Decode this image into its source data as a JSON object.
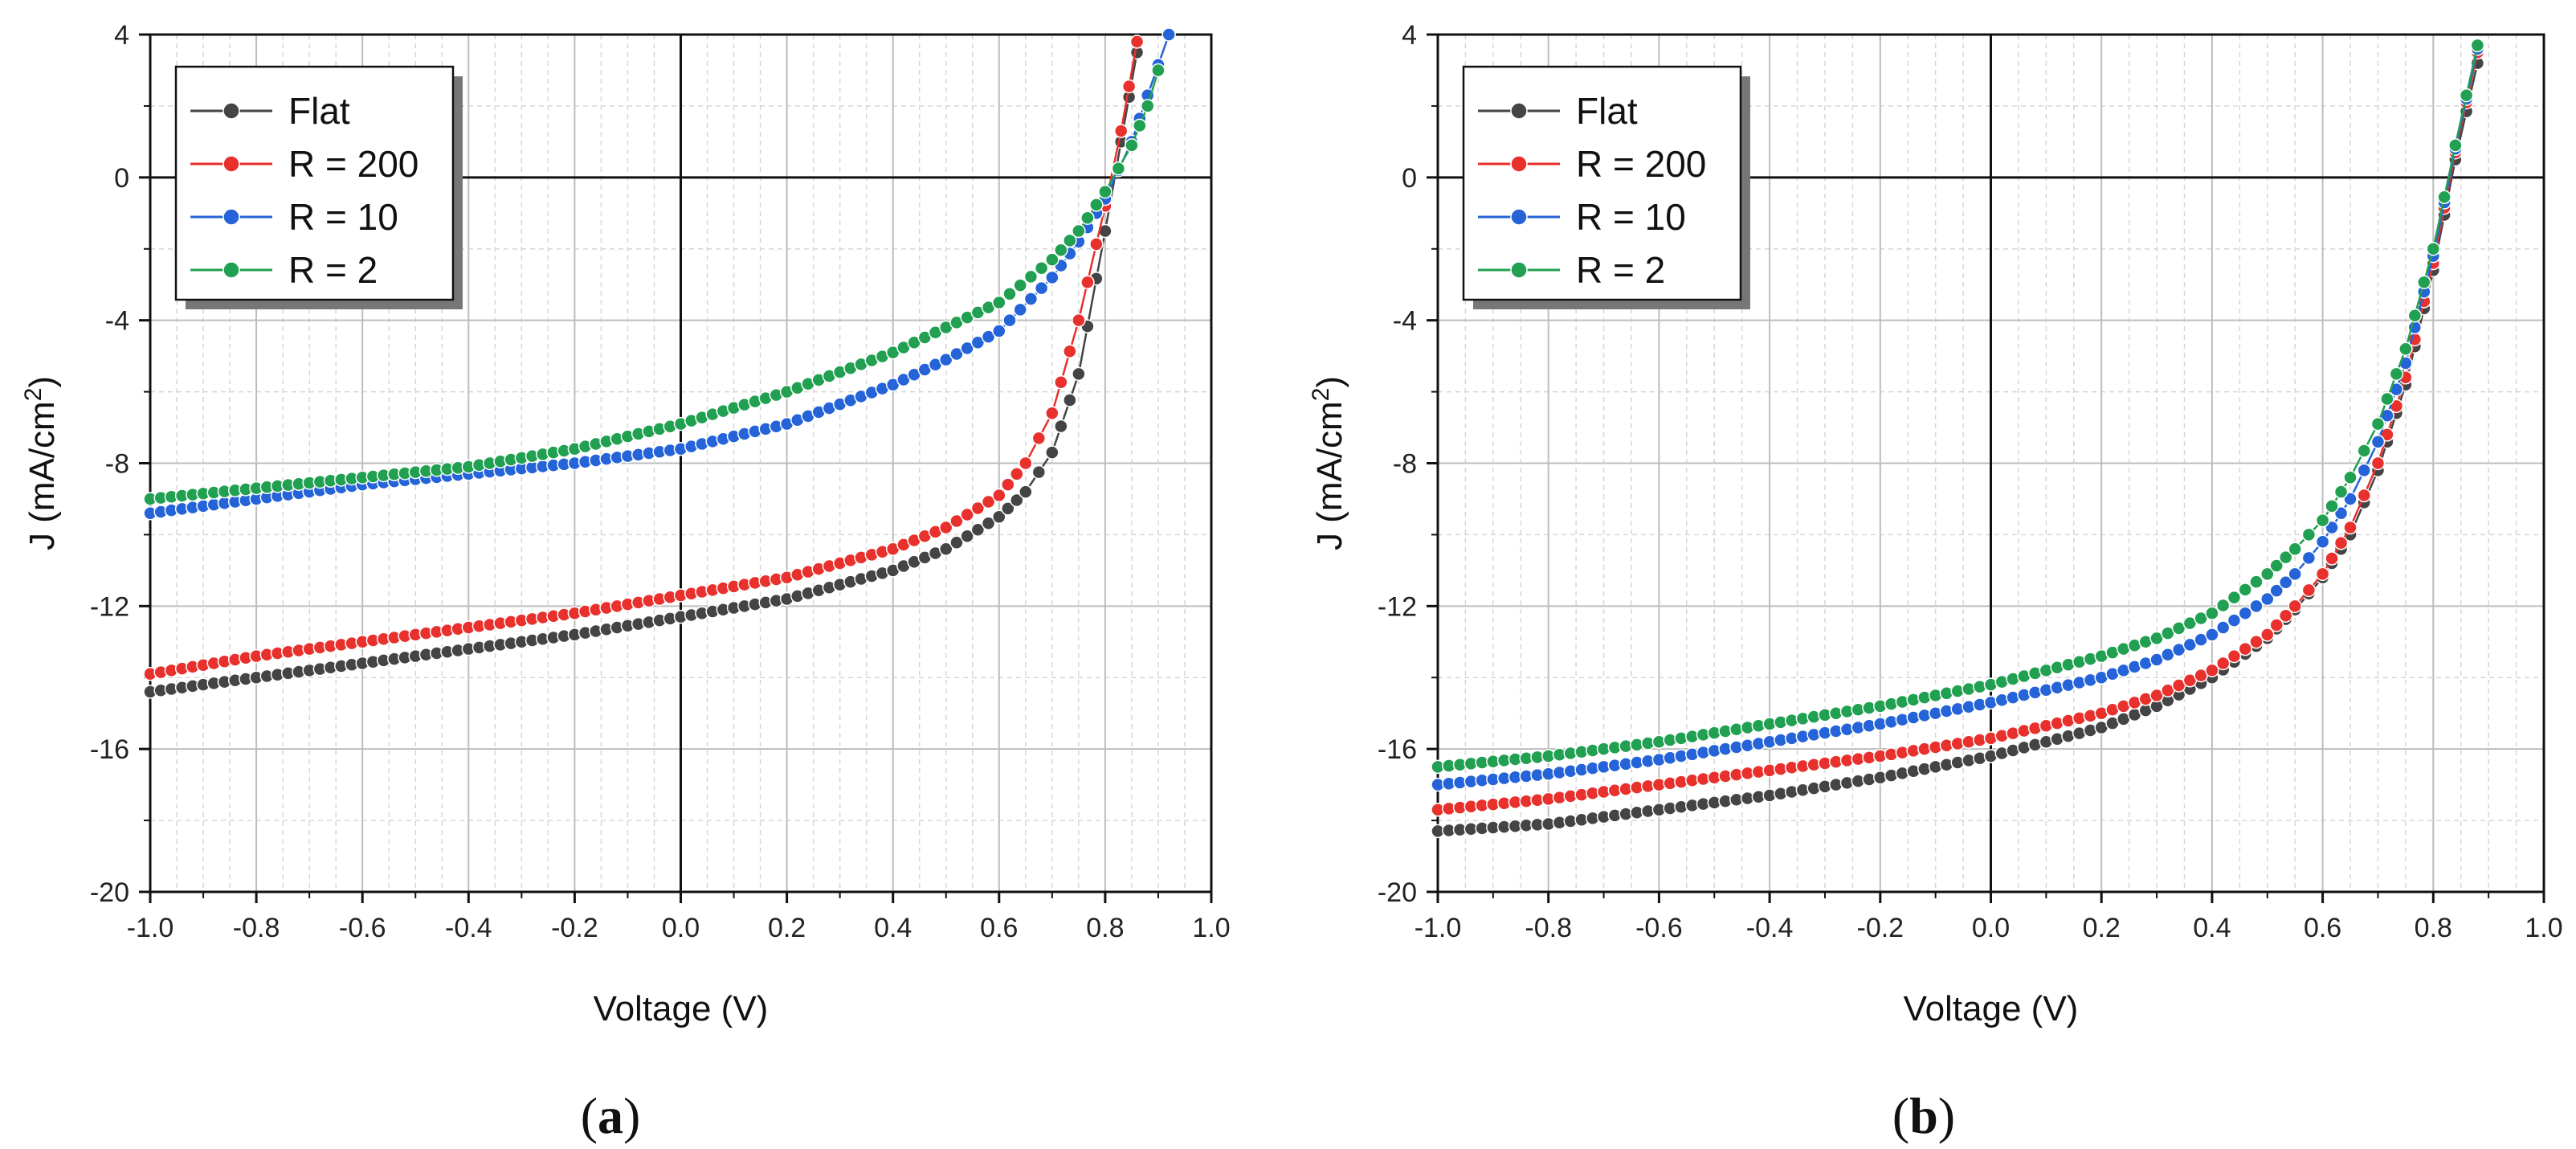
{
  "chart_data": [
    {
      "type": "line",
      "panel_label": "a",
      "xlabel": "Voltage (V)",
      "ylabel": "J (mA/cm",
      "ylabel_sup": "2",
      "ylabel_suffix": ")",
      "xlim": [
        -1.0,
        1.0
      ],
      "ylim": [
        -20,
        4
      ],
      "xticks": [
        "-1.0",
        "-0.8",
        "-0.6",
        "-0.4",
        "-0.2",
        "0.0",
        "0.2",
        "0.4",
        "0.6",
        "0.8",
        "1.0"
      ],
      "yticks": [
        "4",
        "0",
        "-4",
        "-8",
        "-12",
        "-16",
        "-20"
      ],
      "grid": true,
      "legend_position": "top-left",
      "series": [
        {
          "name": "Flat",
          "color": "#444444",
          "x": [
            -1.0,
            -0.8,
            -0.6,
            -0.4,
            -0.2,
            0.0,
            0.2,
            0.4,
            0.5,
            0.6,
            0.65,
            0.7,
            0.75,
            0.8,
            0.83,
            0.86
          ],
          "y": [
            -14.4,
            -14.0,
            -13.6,
            -13.2,
            -12.8,
            -12.3,
            -11.8,
            -11.0,
            -10.4,
            -9.5,
            -8.8,
            -7.7,
            -5.5,
            -1.5,
            1.0,
            3.5
          ]
        },
        {
          "name": "R = 200",
          "color": "#e8302c",
          "x": [
            -1.0,
            -0.8,
            -0.6,
            -0.4,
            -0.2,
            0.0,
            0.2,
            0.4,
            0.5,
            0.6,
            0.65,
            0.7,
            0.75,
            0.8,
            0.83,
            0.86
          ],
          "y": [
            -13.9,
            -13.4,
            -13.0,
            -12.6,
            -12.2,
            -11.7,
            -11.2,
            -10.4,
            -9.8,
            -8.9,
            -8.0,
            -6.6,
            -4.0,
            -0.8,
            1.3,
            3.8
          ]
        },
        {
          "name": "R = 10",
          "color": "#2563d8",
          "x": [
            -1.0,
            -0.8,
            -0.6,
            -0.4,
            -0.2,
            0.0,
            0.2,
            0.4,
            0.5,
            0.6,
            0.7,
            0.75,
            0.8,
            0.85,
            0.88,
            0.92
          ],
          "y": [
            -9.4,
            -9.0,
            -8.6,
            -8.3,
            -8.0,
            -7.6,
            -6.9,
            -5.8,
            -5.1,
            -4.3,
            -2.8,
            -1.8,
            -0.6,
            1.0,
            2.3,
            4.0
          ]
        },
        {
          "name": "R = 2",
          "color": "#20a050",
          "x": [
            -1.0,
            -0.8,
            -0.6,
            -0.4,
            -0.2,
            0.0,
            0.2,
            0.4,
            0.5,
            0.6,
            0.7,
            0.75,
            0.8,
            0.85,
            0.88,
            0.9
          ],
          "y": [
            -9.0,
            -8.7,
            -8.4,
            -8.1,
            -7.6,
            -6.9,
            -6.0,
            -4.9,
            -4.2,
            -3.5,
            -2.3,
            -1.5,
            -0.4,
            0.9,
            2.0,
            3.0
          ]
        }
      ]
    },
    {
      "type": "line",
      "panel_label": "b",
      "xlabel": "Voltage (V)",
      "ylabel": "J (mA/cm",
      "ylabel_sup": "2",
      "ylabel_suffix": ")",
      "xlim": [
        -1.0,
        1.0
      ],
      "ylim": [
        -20,
        4
      ],
      "xticks": [
        "-1.0",
        "-0.8",
        "-0.6",
        "-0.4",
        "-0.2",
        "0.0",
        "0.2",
        "0.4",
        "0.6",
        "0.8",
        "1.0"
      ],
      "yticks": [
        "4",
        "0",
        "-4",
        "-8",
        "-12",
        "-16",
        "-20"
      ],
      "grid": true,
      "legend_position": "top-left",
      "series": [
        {
          "name": "Flat",
          "color": "#444444",
          "x": [
            -1.0,
            -0.8,
            -0.6,
            -0.4,
            -0.2,
            0.0,
            0.2,
            0.3,
            0.4,
            0.5,
            0.55,
            0.6,
            0.65,
            0.7,
            0.75,
            0.8,
            0.84,
            0.88
          ],
          "y": [
            -18.3,
            -18.1,
            -17.7,
            -17.3,
            -16.8,
            -16.2,
            -15.4,
            -14.8,
            -14.0,
            -12.9,
            -12.1,
            -11.2,
            -10.0,
            -8.2,
            -5.8,
            -2.6,
            0.5,
            3.2
          ]
        },
        {
          "name": "R = 200",
          "color": "#e8302c",
          "x": [
            -1.0,
            -0.8,
            -0.6,
            -0.4,
            -0.2,
            0.0,
            0.2,
            0.3,
            0.4,
            0.5,
            0.55,
            0.6,
            0.65,
            0.7,
            0.75,
            0.8,
            0.84,
            0.88
          ],
          "y": [
            -17.7,
            -17.4,
            -17.0,
            -16.6,
            -16.2,
            -15.7,
            -15.0,
            -14.5,
            -13.8,
            -12.8,
            -12.0,
            -11.1,
            -9.8,
            -8.0,
            -5.6,
            -2.4,
            0.7,
            3.5
          ]
        },
        {
          "name": "R = 10",
          "color": "#2563d8",
          "x": [
            -1.0,
            -0.8,
            -0.6,
            -0.4,
            -0.2,
            0.0,
            0.2,
            0.3,
            0.4,
            0.5,
            0.55,
            0.6,
            0.65,
            0.7,
            0.75,
            0.8,
            0.84,
            0.88
          ],
          "y": [
            -17.0,
            -16.7,
            -16.3,
            -15.8,
            -15.3,
            -14.7,
            -14.0,
            -13.5,
            -12.8,
            -11.8,
            -11.1,
            -10.2,
            -9.0,
            -7.4,
            -5.2,
            -2.2,
            0.8,
            3.6
          ]
        },
        {
          "name": "R = 2",
          "color": "#20a050",
          "x": [
            -1.0,
            -0.8,
            -0.6,
            -0.4,
            -0.2,
            0.0,
            0.2,
            0.3,
            0.4,
            0.5,
            0.55,
            0.6,
            0.65,
            0.7,
            0.75,
            0.8,
            0.84,
            0.88
          ],
          "y": [
            -16.5,
            -16.2,
            -15.8,
            -15.3,
            -14.8,
            -14.2,
            -13.4,
            -12.9,
            -12.2,
            -11.1,
            -10.4,
            -9.6,
            -8.4,
            -6.9,
            -4.8,
            -2.0,
            0.9,
            3.7
          ]
        }
      ]
    }
  ]
}
